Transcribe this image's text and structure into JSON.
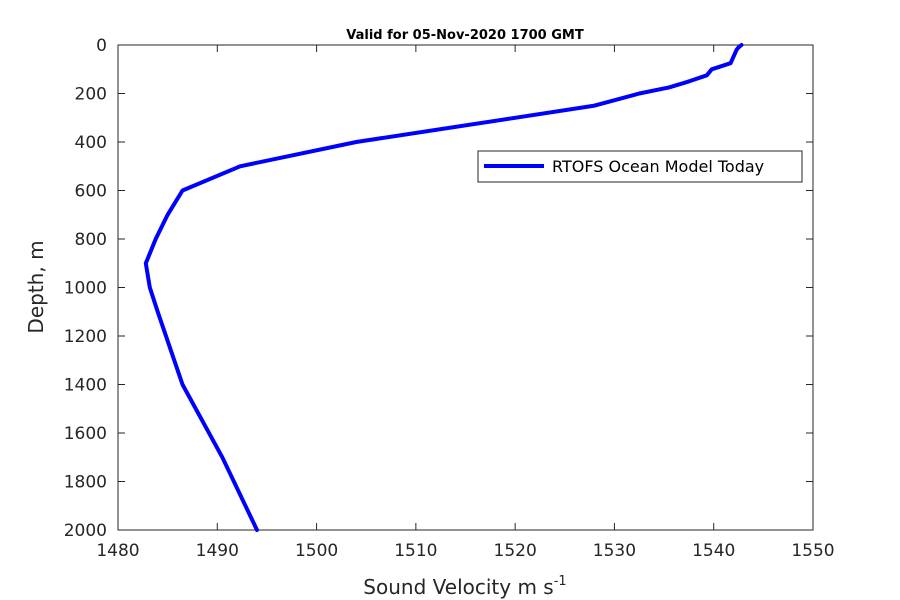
{
  "chart_data": {
    "type": "line",
    "title": "Valid for 05-Nov-2020 1700 GMT",
    "xlabel": "Sound Velocity m s",
    "xlabel_superscript": "-1",
    "ylabel": "Depth, m",
    "xlim": [
      1480,
      1550
    ],
    "ylim": [
      0,
      2000
    ],
    "y_reversed": true,
    "x_ticks": [
      1480,
      1490,
      1500,
      1510,
      1520,
      1530,
      1540,
      1550
    ],
    "y_ticks": [
      0,
      200,
      400,
      600,
      800,
      1000,
      1200,
      1400,
      1600,
      1800,
      2000
    ],
    "grid": false,
    "legend_position": "upper-right",
    "series": [
      {
        "name": "RTOFS Ocean Model Today",
        "color": "#0000ff",
        "x": [
          1542.8,
          1542.5,
          1542.3,
          1541.7,
          1539.8,
          1539.3,
          1537.5,
          1535.5,
          1532.5,
          1528.0,
          1520.0,
          1504.0,
          1492.3,
          1486.5,
          1485.0,
          1483.8,
          1482.8,
          1483.2,
          1484.0,
          1486.5,
          1490.5,
          1494.0
        ],
        "y": [
          0,
          10,
          20,
          75,
          100,
          125,
          150,
          175,
          200,
          250,
          300,
          400,
          500,
          600,
          700,
          800,
          900,
          1000,
          1100,
          1400,
          1700,
          2000
        ]
      }
    ]
  }
}
